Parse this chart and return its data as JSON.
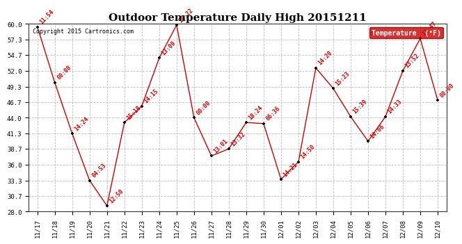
{
  "title": "Outdoor Temperature Daily High 20151211",
  "copyright": "Copyright 2015 Cartronics.com",
  "legend_label": "Temperature  (°F)",
  "x_labels": [
    "11/17",
    "11/18",
    "11/19",
    "11/20",
    "11/21",
    "11/22",
    "11/23",
    "11/24",
    "11/25",
    "11/26",
    "11/27",
    "11/28",
    "11/29",
    "11/30",
    "12/01",
    "12/02",
    "12/03",
    "12/04",
    "12/05",
    "12/06",
    "12/07",
    "12/08",
    "12/09",
    "12/10"
  ],
  "y_values": [
    59.5,
    50.0,
    41.3,
    33.3,
    29.0,
    43.2,
    46.0,
    54.2,
    59.8,
    44.0,
    37.5,
    38.7,
    43.2,
    43.0,
    33.5,
    36.5,
    52.5,
    49.0,
    44.2,
    40.0,
    44.2,
    52.0,
    57.5,
    47.0
  ],
  "point_labels": [
    "11:54",
    "00:00",
    "14:24",
    "04:53",
    "12:50",
    "15:18",
    "14:15",
    "13:09",
    "20:22",
    "00:00",
    "13:01",
    "13:32",
    "18:24",
    "06:36",
    "14:21",
    "14:50",
    "14:20",
    "15:23",
    "15:39",
    "14:06",
    "14:33",
    "13:52",
    "12:47",
    "00:00"
  ],
  "ylim": [
    28.0,
    60.0
  ],
  "yticks": [
    28.0,
    30.7,
    33.3,
    36.0,
    38.7,
    41.3,
    44.0,
    46.7,
    49.3,
    52.0,
    54.7,
    57.3,
    60.0
  ],
  "line_color": "#cc0000",
  "point_color": "#000000",
  "bg_color": "#ffffff",
  "grid_color": "#bbbbbb",
  "title_fontsize": 11,
  "label_fontsize": 6.5,
  "point_label_fontsize": 6,
  "legend_bg": "#cc0000",
  "legend_text_color": "#ffffff"
}
